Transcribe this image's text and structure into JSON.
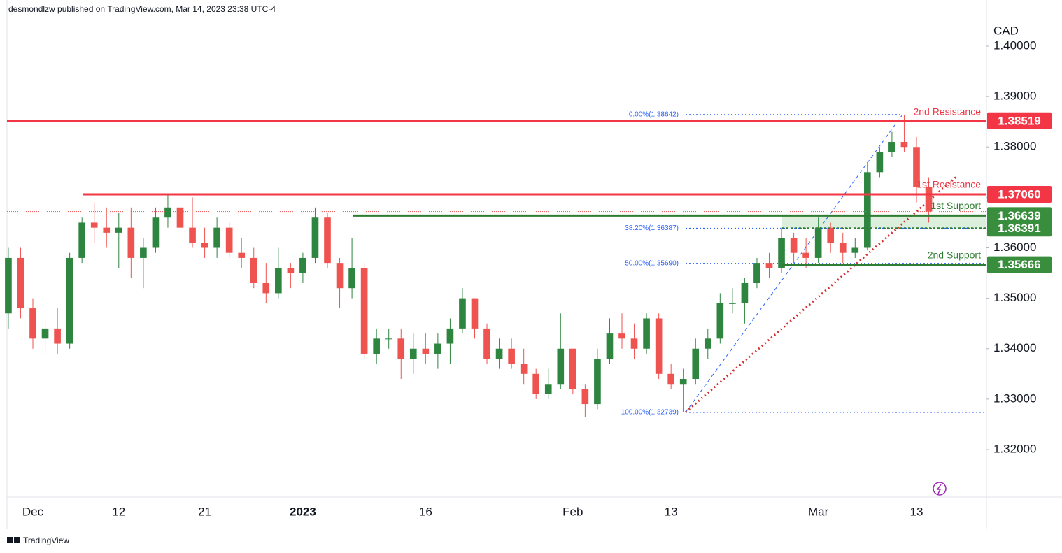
{
  "header": "desmondlzw published on TradingView.com, Mar 14, 2023 23:38 UTC-4",
  "footer": "TradingView",
  "chart_data": {
    "type": "candlestick",
    "y_axis_label": "CAD",
    "x": [
      null,
      null,
      "Dec",
      null,
      null,
      null,
      null,
      null,
      null,
      "12",
      null,
      null,
      null,
      null,
      null,
      null,
      "21",
      null,
      null,
      null,
      null,
      null,
      null,
      null,
      "2023",
      null,
      null,
      null,
      null,
      null,
      null,
      null,
      null,
      null,
      "16",
      null,
      null,
      null,
      null,
      null,
      null,
      null,
      null,
      null,
      null,
      null,
      "Feb",
      null,
      null,
      null,
      null,
      null,
      null,
      null,
      "13",
      null,
      null,
      null,
      null,
      null,
      null,
      null,
      null,
      null,
      null,
      null,
      "Mar",
      null,
      null,
      null,
      null,
      null,
      null,
      null,
      "13",
      null
    ],
    "open": [
      1.347,
      1.358,
      1.348,
      1.342,
      1.344,
      1.341,
      1.358,
      1.365,
      1.364,
      1.363,
      1.364,
      1.358,
      1.36,
      1.366,
      1.368,
      1.364,
      1.361,
      1.36,
      1.364,
      1.359,
      1.358,
      1.353,
      1.351,
      1.356,
      1.355,
      1.358,
      1.366,
      1.357,
      1.352,
      1.356,
      1.339,
      1.342,
      1.342,
      1.338,
      1.34,
      1.339,
      1.341,
      1.344,
      1.35,
      1.344,
      1.338,
      1.34,
      1.337,
      1.335,
      1.331,
      1.333,
      1.34,
      1.332,
      1.329,
      1.338,
      1.343,
      1.342,
      1.34,
      1.346,
      1.335,
      1.333,
      1.334,
      1.34,
      1.342,
      1.349,
      1.349,
      1.353,
      1.357,
      1.356,
      1.362,
      1.359,
      1.358,
      1.364,
      1.361,
      1.359,
      1.36,
      1.375,
      1.379,
      1.381,
      1.38,
      1.372
    ],
    "high": [
      1.36,
      1.36,
      1.35,
      1.346,
      1.348,
      1.359,
      1.366,
      1.369,
      1.368,
      1.367,
      1.368,
      1.362,
      1.368,
      1.3705,
      1.369,
      1.37,
      1.364,
      1.366,
      1.365,
      1.362,
      1.36,
      1.357,
      1.36,
      1.357,
      1.359,
      1.368,
      1.367,
      1.358,
      1.362,
      1.357,
      1.344,
      1.344,
      1.344,
      1.343,
      1.343,
      1.343,
      1.346,
      1.352,
      1.35,
      1.345,
      1.342,
      1.342,
      1.34,
      1.336,
      1.336,
      1.347,
      1.34,
      1.333,
      1.34,
      1.346,
      1.347,
      1.345,
      1.347,
      1.347,
      1.337,
      1.336,
      1.342,
      1.344,
      1.351,
      1.352,
      1.354,
      1.358,
      1.359,
      1.364,
      1.363,
      1.362,
      1.366,
      1.365,
      1.363,
      1.362,
      1.377,
      1.38,
      1.383,
      1.3864,
      1.382,
      1.374
    ],
    "low": [
      1.344,
      1.346,
      1.34,
      1.339,
      1.339,
      1.34,
      1.357,
      1.361,
      1.36,
      1.356,
      1.354,
      1.352,
      1.359,
      1.364,
      1.36,
      1.36,
      1.358,
      1.358,
      1.358,
      1.356,
      1.352,
      1.349,
      1.35,
      1.352,
      1.353,
      1.357,
      1.356,
      1.348,
      1.35,
      1.338,
      1.337,
      1.34,
      1.334,
      1.335,
      1.337,
      1.336,
      1.337,
      1.343,
      1.342,
      1.337,
      1.336,
      1.336,
      1.333,
      1.33,
      1.33,
      1.332,
      1.331,
      1.3265,
      1.328,
      1.337,
      1.34,
      1.338,
      1.339,
      1.334,
      1.332,
      1.3274,
      1.333,
      1.338,
      1.341,
      1.347,
      1.345,
      1.352,
      1.354,
      1.355,
      1.357,
      1.356,
      1.357,
      1.359,
      1.357,
      1.358,
      1.3595,
      1.374,
      1.378,
      1.379,
      1.369,
      1.365
    ],
    "close": [
      1.358,
      1.348,
      1.342,
      1.344,
      1.341,
      1.358,
      1.365,
      1.364,
      1.363,
      1.364,
      1.358,
      1.36,
      1.366,
      1.368,
      1.364,
      1.361,
      1.36,
      1.364,
      1.359,
      1.358,
      1.353,
      1.351,
      1.356,
      1.355,
      1.358,
      1.366,
      1.357,
      1.352,
      1.356,
      1.339,
      1.342,
      1.342,
      1.338,
      1.34,
      1.339,
      1.341,
      1.344,
      1.35,
      1.344,
      1.338,
      1.34,
      1.337,
      1.335,
      1.331,
      1.333,
      1.34,
      1.332,
      1.329,
      1.338,
      1.343,
      1.342,
      1.34,
      1.346,
      1.335,
      1.333,
      1.334,
      1.34,
      1.342,
      1.349,
      1.349,
      1.353,
      1.357,
      1.356,
      1.362,
      1.359,
      1.358,
      1.364,
      1.361,
      1.359,
      1.36,
      1.375,
      1.379,
      1.381,
      1.38,
      1.372,
      1.3672
    ],
    "up_color": "#2e8540",
    "down_color": "#ef5350",
    "ylim": [
      1.31071,
      1.40915
    ],
    "yticks": [
      {
        "value": 1.32,
        "label": "1.32000"
      },
      {
        "value": 1.33,
        "label": "1.33000"
      },
      {
        "value": 1.34,
        "label": "1.34000"
      },
      {
        "value": 1.35,
        "label": "1.35000"
      },
      {
        "value": 1.36,
        "label": "1.36000"
      },
      {
        "value": 1.37,
        "label": "1.37000"
      },
      {
        "value": 1.38,
        "label": "1.38000"
      },
      {
        "value": 1.39,
        "label": "1.39000"
      },
      {
        "value": 1.4,
        "label": "1.40000"
      }
    ],
    "levels": [
      {
        "name": "2nd Resistance",
        "value": 1.38519,
        "label": "1.38519",
        "color": "#f23645"
      },
      {
        "name": "1st Resistance",
        "value": 1.3706,
        "label": "1.37060",
        "color": "#f23645"
      },
      {
        "name": "1st Support",
        "value": 1.36639,
        "label": "1.36639",
        "color": "#2e7d32"
      },
      {
        "value": 1.36391,
        "label": "1.36391",
        "color": "#2e7d32"
      },
      {
        "name": "2nd Support",
        "value": 1.35666,
        "label": "1.35666",
        "color": "#2e7d32"
      }
    ],
    "fib_levels": [
      {
        "label": "0.00%(1.38642)",
        "value": 1.38642
      },
      {
        "label": "38.20%(1.36387)",
        "value": 1.36387
      },
      {
        "label": "50.00%(1.35690)",
        "value": 1.3569
      },
      {
        "label": "100.00%(1.32739)",
        "value": 1.32739
      }
    ],
    "fib_color": "#2962ff"
  }
}
